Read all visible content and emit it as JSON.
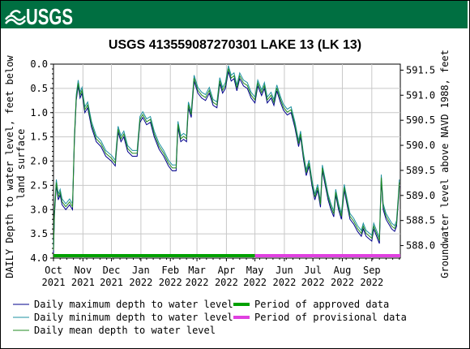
{
  "logo": {
    "text": "USGS"
  },
  "chart_data": {
    "type": "line",
    "title": "USGS 413559087270301 LAKE 13 (LK 13)",
    "ylabel_left": "DAILY Depth to water level, feet below land surface",
    "ylabel_right": "Groundwater level above NAVD 1988, feet",
    "ylim_left": [
      4.0,
      0.0
    ],
    "ylim_right": [
      587.75,
      591.62
    ],
    "y_ticks_left": [
      "0.0",
      "0.5",
      "1.0",
      "1.5",
      "2.0",
      "2.5",
      "3.0",
      "3.5",
      "4.0"
    ],
    "y_ticks_right": [
      "591.5",
      "591.0",
      "590.5",
      "590.0",
      "589.5",
      "589.0",
      "588.5",
      "588.0"
    ],
    "x_ticks": [
      {
        "month": "Oct",
        "year": "2021"
      },
      {
        "month": "Nov",
        "year": "2021"
      },
      {
        "month": "Dec",
        "year": "2021"
      },
      {
        "month": "Jan",
        "year": "2022"
      },
      {
        "month": "Feb",
        "year": "2022"
      },
      {
        "month": "Mar",
        "year": "2022"
      },
      {
        "month": "Apr",
        "year": "2022"
      },
      {
        "month": "May",
        "year": "2022"
      },
      {
        "month": "Jun",
        "year": "2022"
      },
      {
        "month": "Jul",
        "year": "2022"
      },
      {
        "month": "Aug",
        "year": "2022"
      },
      {
        "month": "Sep",
        "year": "2022"
      }
    ],
    "x_range": [
      "2021-10-01",
      "2022-10-01"
    ],
    "series": [
      {
        "name": "Daily maximum depth to water level",
        "color": "#00008b",
        "points": [
          [
            "2021-10-01",
            3.9
          ],
          [
            "2021-10-02",
            3.1
          ],
          [
            "2021-10-04",
            2.5
          ],
          [
            "2021-10-06",
            2.8
          ],
          [
            "2021-10-08",
            2.7
          ],
          [
            "2021-10-10",
            2.9
          ],
          [
            "2021-10-14",
            3.0
          ],
          [
            "2021-10-18",
            2.9
          ],
          [
            "2021-10-21",
            3.0
          ],
          [
            "2021-10-23",
            1.6
          ],
          [
            "2021-10-25",
            0.75
          ],
          [
            "2021-10-27",
            0.45
          ],
          [
            "2021-10-29",
            0.7
          ],
          [
            "2021-10-31",
            0.6
          ],
          [
            "2021-11-03",
            1.0
          ],
          [
            "2021-11-06",
            0.9
          ],
          [
            "2021-11-10",
            1.3
          ],
          [
            "2021-11-15",
            1.6
          ],
          [
            "2021-11-20",
            1.7
          ],
          [
            "2021-11-25",
            1.9
          ],
          [
            "2021-12-01",
            2.0
          ],
          [
            "2021-12-05",
            2.1
          ],
          [
            "2021-12-08",
            1.4
          ],
          [
            "2021-12-11",
            1.6
          ],
          [
            "2021-12-14",
            1.5
          ],
          [
            "2021-12-18",
            1.8
          ],
          [
            "2021-12-23",
            1.9
          ],
          [
            "2021-12-28",
            1.9
          ],
          [
            "2021-12-31",
            1.2
          ],
          [
            "2022-01-03",
            1.1
          ],
          [
            "2022-01-07",
            1.25
          ],
          [
            "2022-01-11",
            1.2
          ],
          [
            "2022-01-15",
            1.5
          ],
          [
            "2022-01-20",
            1.75
          ],
          [
            "2022-01-25",
            1.9
          ],
          [
            "2022-01-30",
            2.1
          ],
          [
            "2022-02-03",
            2.2
          ],
          [
            "2022-02-07",
            2.2
          ],
          [
            "2022-02-09",
            1.3
          ],
          [
            "2022-02-12",
            1.6
          ],
          [
            "2022-02-15",
            1.55
          ],
          [
            "2022-02-18",
            1.6
          ],
          [
            "2022-02-20",
            0.9
          ],
          [
            "2022-02-23",
            1.1
          ],
          [
            "2022-02-26",
            0.35
          ],
          [
            "2022-03-02",
            0.6
          ],
          [
            "2022-03-06",
            0.7
          ],
          [
            "2022-03-10",
            0.75
          ],
          [
            "2022-03-14",
            0.6
          ],
          [
            "2022-03-18",
            0.85
          ],
          [
            "2022-03-22",
            0.9
          ],
          [
            "2022-03-25",
            0.4
          ],
          [
            "2022-03-28",
            0.6
          ],
          [
            "2022-03-31",
            0.5
          ],
          [
            "2022-04-03",
            0.15
          ],
          [
            "2022-04-06",
            0.35
          ],
          [
            "2022-04-09",
            0.3
          ],
          [
            "2022-04-12",
            0.55
          ],
          [
            "2022-04-15",
            0.3
          ],
          [
            "2022-04-19",
            0.45
          ],
          [
            "2022-04-23",
            0.5
          ],
          [
            "2022-04-27",
            0.7
          ],
          [
            "2022-05-01",
            0.8
          ],
          [
            "2022-05-04",
            0.45
          ],
          [
            "2022-05-08",
            0.65
          ],
          [
            "2022-05-11",
            0.5
          ],
          [
            "2022-05-14",
            0.8
          ],
          [
            "2022-05-18",
            0.7
          ],
          [
            "2022-05-21",
            0.85
          ],
          [
            "2022-05-24",
            0.55
          ],
          [
            "2022-05-28",
            0.8
          ],
          [
            "2022-05-31",
            0.95
          ],
          [
            "2022-06-04",
            1.05
          ],
          [
            "2022-06-08",
            1.0
          ],
          [
            "2022-06-12",
            1.3
          ],
          [
            "2022-06-16",
            1.7
          ],
          [
            "2022-06-18",
            1.5
          ],
          [
            "2022-06-21",
            1.95
          ],
          [
            "2022-06-24",
            2.3
          ],
          [
            "2022-06-27",
            2.1
          ],
          [
            "2022-06-30",
            2.5
          ],
          [
            "2022-07-03",
            2.8
          ],
          [
            "2022-07-06",
            2.6
          ],
          [
            "2022-07-09",
            2.95
          ],
          [
            "2022-07-11",
            2.2
          ],
          [
            "2022-07-14",
            2.5
          ],
          [
            "2022-07-17",
            2.8
          ],
          [
            "2022-07-20",
            3.0
          ],
          [
            "2022-07-23",
            3.15
          ],
          [
            "2022-07-25",
            2.7
          ],
          [
            "2022-07-28",
            3.0
          ],
          [
            "2022-07-31",
            3.2
          ],
          [
            "2022-08-03",
            2.6
          ],
          [
            "2022-08-06",
            2.9
          ],
          [
            "2022-08-09",
            3.2
          ],
          [
            "2022-08-13",
            3.3
          ],
          [
            "2022-08-17",
            3.45
          ],
          [
            "2022-08-21",
            3.55
          ],
          [
            "2022-08-23",
            3.4
          ],
          [
            "2022-08-26",
            3.55
          ],
          [
            "2022-08-29",
            3.6
          ],
          [
            "2022-09-01",
            3.65
          ],
          [
            "2022-09-03",
            3.4
          ],
          [
            "2022-09-06",
            3.55
          ],
          [
            "2022-09-09",
            3.7
          ],
          [
            "2022-09-11",
            2.4
          ],
          [
            "2022-09-13",
            3.0
          ],
          [
            "2022-09-16",
            3.2
          ],
          [
            "2022-09-19",
            3.3
          ],
          [
            "2022-09-22",
            3.4
          ],
          [
            "2022-09-25",
            3.45
          ],
          [
            "2022-09-27",
            3.35
          ],
          [
            "2022-09-29",
            2.8
          ],
          [
            "2022-09-30",
            2.5
          ]
        ]
      },
      {
        "name": "Daily minimum depth to water level",
        "color": "#1e90a0",
        "offset": -0.12
      },
      {
        "name": "Daily mean depth to water level",
        "color": "#228b22",
        "offset": -0.06
      }
    ],
    "periods": [
      {
        "name": "Period of approved data",
        "color": "#00a000",
        "from": "2021-10-01",
        "to": "2022-05-01"
      },
      {
        "name": "Period of provisional data",
        "color": "#e040e0",
        "from": "2022-05-01",
        "to": "2022-10-01"
      }
    ],
    "grid": true,
    "legend_position": "bottom"
  }
}
